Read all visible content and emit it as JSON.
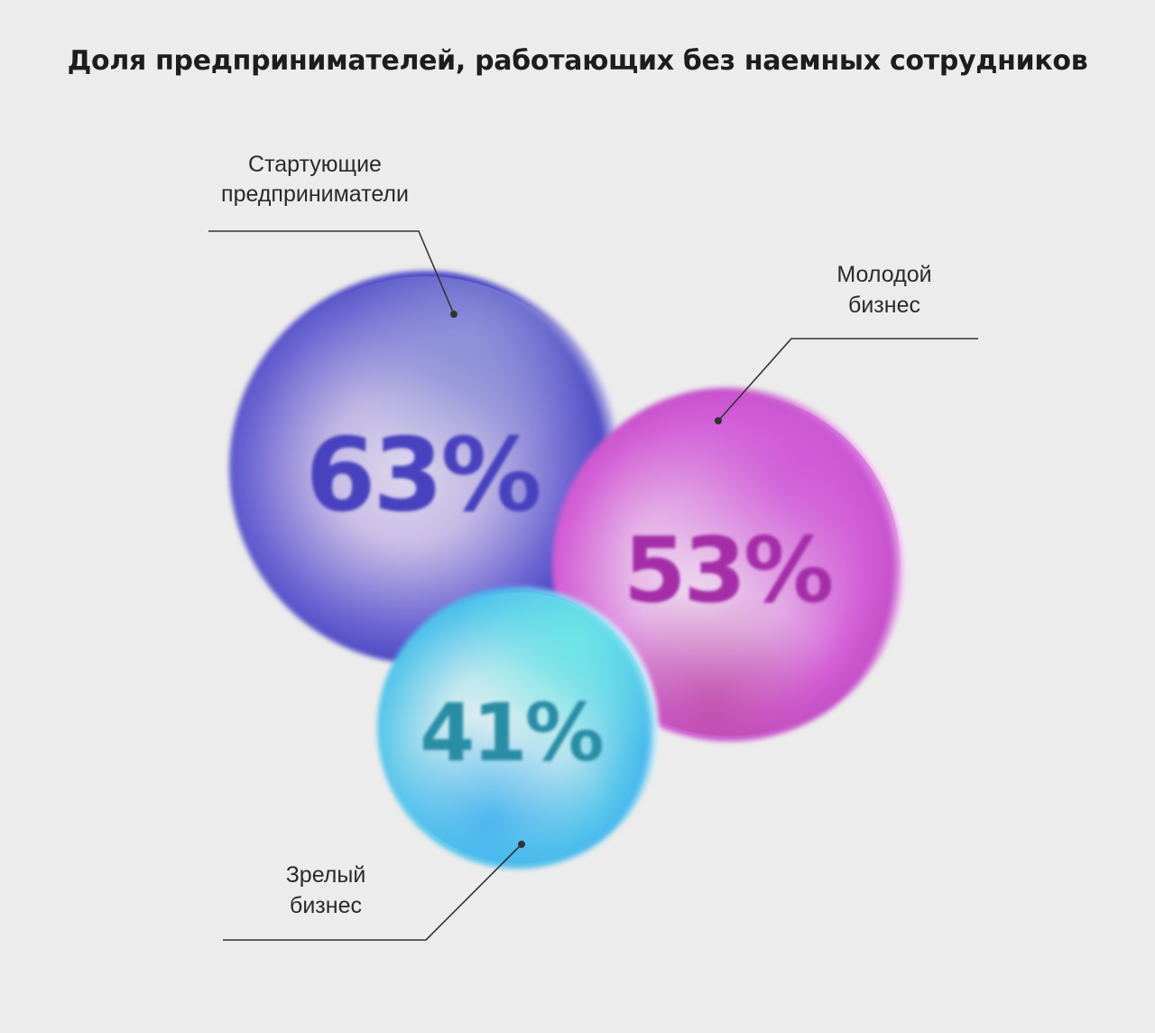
{
  "chart_data": {
    "type": "bubble",
    "title": "Доля предпринимателей, работающих без наемных сотрудников",
    "series": [
      {
        "category": "Стартующие предприниматели",
        "label_lines": [
          "Стартующие",
          "предприниматели"
        ],
        "value": 63,
        "value_label": "63%",
        "color": "#4b43c4"
      },
      {
        "category": "Молодой бизнес",
        "label_lines": [
          "Молодой",
          "бизнес"
        ],
        "value": 53,
        "value_label": "53%",
        "color": "#b83bb5"
      },
      {
        "category": "Зрелый бизнес",
        "label_lines": [
          "Зрелый",
          "бизнес"
        ],
        "value": 41,
        "value_label": "41%",
        "color": "#2a8fa5"
      }
    ]
  }
}
